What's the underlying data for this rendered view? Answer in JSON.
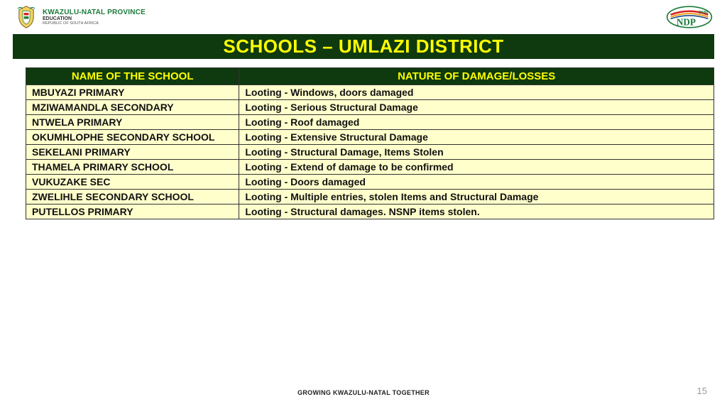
{
  "header": {
    "province": "KWAZULU-NATAL PROVINCE",
    "department": "EDUCATION",
    "subline": "REPUBLIC OF SOUTH AFRICA",
    "ndp_year": "2030",
    "ndp_label": "NDP"
  },
  "title": "SCHOOLS – UMLAZI DISTRICT",
  "table": {
    "columns": [
      "NAME OF THE SCHOOL",
      "NATURE OF DAMAGE/LOSSES"
    ],
    "col_widths": [
      "31%",
      "69%"
    ],
    "header_bg": "#0f3a0f",
    "header_fg": "#ffff00",
    "row_bg": "#ffffcc",
    "row_fg": "#111111",
    "border_color": "#333333",
    "header_fontsize": 15,
    "cell_fontsize": 14,
    "rows": [
      [
        "MBUYAZI PRIMARY",
        "Looting - Windows, doors damaged"
      ],
      [
        "MZIWAMANDLA SECONDARY",
        "Looting - Serious Structural Damage"
      ],
      [
        "NTWELA PRIMARY",
        "Looting - Roof damaged"
      ],
      [
        "OKUMHLOPHE SECONDARY SCHOOL",
        "Looting - Extensive Structural Damage"
      ],
      [
        "SEKELANI PRIMARY",
        "Looting - Structural Damage, Items Stolen"
      ],
      [
        "THAMELA PRIMARY SCHOOL",
        "Looting - Extend of damage to be confirmed"
      ],
      [
        "VUKUZAKE SEC",
        "Looting - Doors damaged"
      ],
      [
        "ZWELIHLE SECONDARY SCHOOL",
        "Looting - Multiple entries, stolen Items and Structural Damage"
      ],
      [
        "PUTELLOS PRIMARY",
        "Looting - Structural damages. NSNP items stolen."
      ]
    ]
  },
  "footer": "GROWING KWAZULU-NATAL TOGETHER",
  "page_number": "15",
  "colors": {
    "title_bg": "#0f3a0f",
    "title_fg": "#ffff00",
    "page_bg": "#ffffff"
  }
}
